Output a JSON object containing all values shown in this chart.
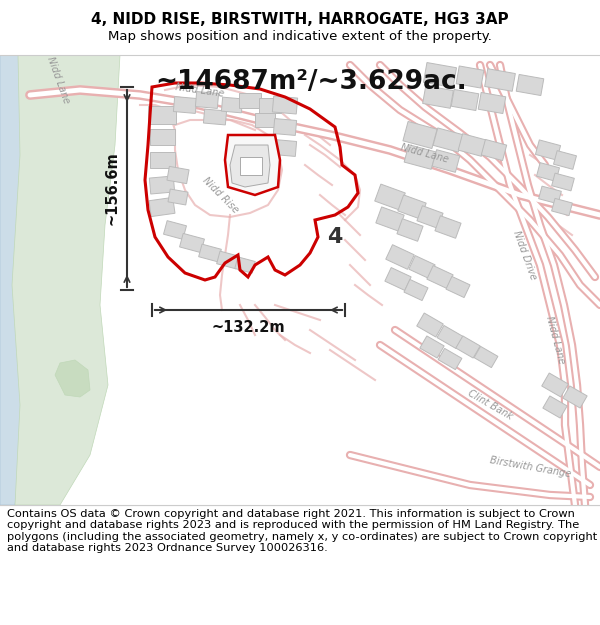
{
  "title": "4, NIDD RISE, BIRSTWITH, HARROGATE, HG3 3AP",
  "subtitle": "Map shows position and indicative extent of the property.",
  "area_text": "~14687m²/~3.629ac.",
  "dim_width": "~132.2m",
  "dim_height": "~156.6m",
  "label": "4",
  "bg_color": "#f9f9f9",
  "map_bg": "#ffffff",
  "highlight_color": "#cc0000",
  "road_outer": "#e8b0b0",
  "road_inner": "#ffffff",
  "building_fill": "#d8d8d8",
  "building_edge": "#bbbbbb",
  "green_fill": "#dce8d8",
  "green_stroke": "#c0d8b8",
  "green2_fill": "#c8dcc0",
  "water_fill": "#ccdde8",
  "water_stroke": "#aac4d8",
  "dim_color": "#333333",
  "label_color": "#333333",
  "road_label_color": "#999999",
  "footer_text": "Contains OS data © Crown copyright and database right 2021. This information is subject to Crown copyright and database rights 2023 and is reproduced with the permission of HM Land Registry. The polygons (including the associated geometry, namely x, y co-ordinates) are subject to Crown copyright and database rights 2023 Ordnance Survey 100026316.",
  "title_fontsize": 11,
  "subtitle_fontsize": 9.5,
  "area_fontsize": 19,
  "footer_fontsize": 8.2,
  "dim_fontsize": 10.5
}
